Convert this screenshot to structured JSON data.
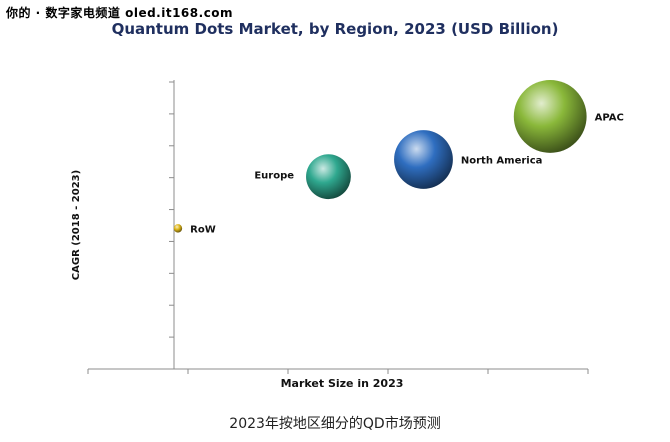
{
  "watermark": "你的 · 数字家电频道 oled.it168.com",
  "caption": "2023年按地区细分的QD市场预测",
  "chart_data": {
    "type": "scatter",
    "title": "Quantum Dots Market, by Region, 2023 (USD Billion)",
    "xlabel": "Market Size in 2023",
    "ylabel": "CAGR (2018 - 2023)",
    "xlim": [
      0,
      10
    ],
    "ylim": [
      0,
      10
    ],
    "x_tick_count": 5,
    "y_tick_count": 9,
    "grid": false,
    "points": [
      {
        "label": "RoW",
        "x": 0.1,
        "y": 4.9,
        "size": 0.3,
        "color": "#e0b81a"
      },
      {
        "label": "Europe",
        "x": 3.9,
        "y": 6.7,
        "size": 1.6,
        "color": "#2fa88f"
      },
      {
        "label": "North America",
        "x": 6.3,
        "y": 7.3,
        "size": 2.1,
        "color": "#2f6ec0"
      },
      {
        "label": "APAC",
        "x": 9.5,
        "y": 8.8,
        "size": 2.6,
        "color": "#8ab83a"
      }
    ]
  }
}
